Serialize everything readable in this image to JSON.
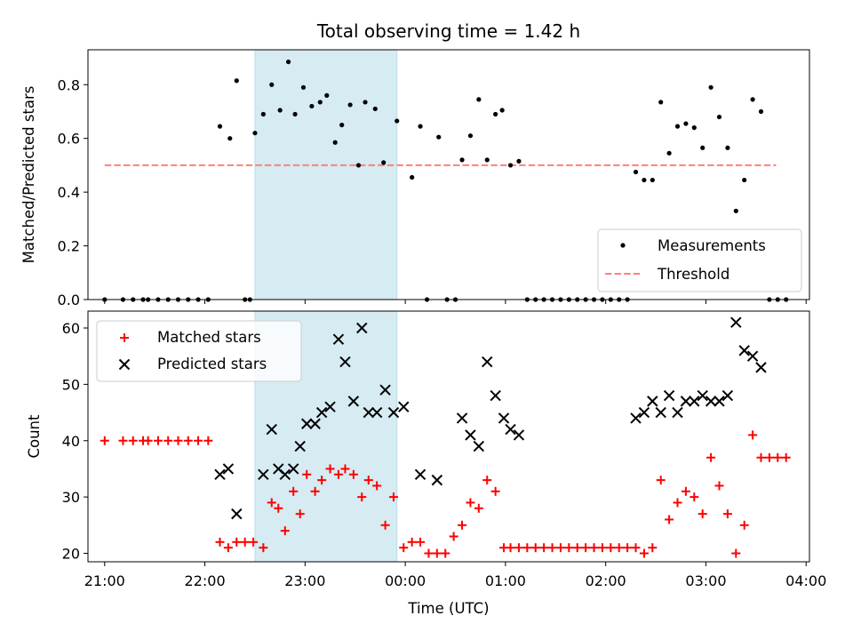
{
  "chart_data": [
    {
      "type": "scatter",
      "title": "Total observing time = 1.42 h",
      "ylabel": "Matched/Predicted stars",
      "xlabel": "",
      "ylim": [
        0,
        0.93
      ],
      "xlim": [
        "20:50",
        "04:02"
      ],
      "yticks": [
        "0.0",
        "0.2",
        "0.4",
        "0.6",
        "0.8"
      ],
      "grid": false,
      "legend_position": "bottom-right",
      "shaded_interval": [
        "22:30",
        "23:55"
      ],
      "colors": {
        "measurements": "#000000",
        "threshold": "#ff7f7f",
        "shade": "#add8e6"
      },
      "series": [
        {
          "name": "Measurements",
          "marker": "dot",
          "points": [
            [
              "21:00",
              0
            ],
            [
              "21:11",
              0
            ],
            [
              "21:17",
              0
            ],
            [
              "21:23",
              0
            ],
            [
              "21:26",
              0
            ],
            [
              "21:32",
              0
            ],
            [
              "21:38",
              0
            ],
            [
              "21:44",
              0
            ],
            [
              "21:50",
              0
            ],
            [
              "21:56",
              0
            ],
            [
              "22:02",
              0
            ],
            [
              "22:09",
              0.645
            ],
            [
              "22:15",
              0.6
            ],
            [
              "22:19",
              0.815
            ],
            [
              "22:24",
              0
            ],
            [
              "22:27",
              0
            ],
            [
              "22:30",
              0.62
            ],
            [
              "22:35",
              0.69
            ],
            [
              "22:40",
              0.8
            ],
            [
              "22:45",
              0.705
            ],
            [
              "22:50",
              0.885
            ],
            [
              "22:54",
              0.69
            ],
            [
              "22:59",
              0.79
            ],
            [
              "23:04",
              0.72
            ],
            [
              "23:09",
              0.735
            ],
            [
              "23:13",
              0.76
            ],
            [
              "23:18",
              0.585
            ],
            [
              "23:22",
              0.65
            ],
            [
              "23:27",
              0.725
            ],
            [
              "23:32",
              0.5
            ],
            [
              "23:36",
              0.735
            ],
            [
              "23:42",
              0.71
            ],
            [
              "23:47",
              0.51
            ],
            [
              "23:55",
              0.665
            ],
            [
              "00:04",
              0.455
            ],
            [
              "00:09",
              0.645
            ],
            [
              "00:13",
              0
            ],
            [
              "00:20",
              0.605
            ],
            [
              "00:25",
              0
            ],
            [
              "00:30",
              0
            ],
            [
              "00:34",
              0.52
            ],
            [
              "00:39",
              0.61
            ],
            [
              "00:44",
              0.745
            ],
            [
              "00:49",
              0.52
            ],
            [
              "00:54",
              0.69
            ],
            [
              "00:58",
              0.705
            ],
            [
              "01:03",
              0.5
            ],
            [
              "01:08",
              0.515
            ],
            [
              "01:13",
              0
            ],
            [
              "01:18",
              0
            ],
            [
              "01:23",
              0
            ],
            [
              "01:28",
              0
            ],
            [
              "01:33",
              0
            ],
            [
              "01:38",
              0
            ],
            [
              "01:43",
              0
            ],
            [
              "01:48",
              0
            ],
            [
              "01:53",
              0
            ],
            [
              "01:58",
              0
            ],
            [
              "02:03",
              0
            ],
            [
              "02:08",
              0
            ],
            [
              "02:13",
              0
            ],
            [
              "02:18",
              0.475
            ],
            [
              "02:23",
              0.445
            ],
            [
              "02:28",
              0.445
            ],
            [
              "02:33",
              0.735
            ],
            [
              "02:38",
              0.545
            ],
            [
              "02:43",
              0.645
            ],
            [
              "02:48",
              0.655
            ],
            [
              "02:53",
              0.64
            ],
            [
              "02:58",
              0.565
            ],
            [
              "03:03",
              0.79
            ],
            [
              "03:08",
              0.68
            ],
            [
              "03:13",
              0.565
            ],
            [
              "03:18",
              0.33
            ],
            [
              "03:23",
              0.445
            ],
            [
              "03:28",
              0.745
            ],
            [
              "03:33",
              0.7
            ],
            [
              "03:38",
              0
            ],
            [
              "03:43",
              0
            ],
            [
              "03:48",
              0
            ]
          ]
        },
        {
          "name": "Threshold",
          "style": "dashed",
          "points": [
            [
              "21:00",
              0.5
            ],
            [
              "03:42",
              0.5
            ]
          ]
        }
      ]
    },
    {
      "type": "scatter",
      "title": "",
      "xlabel": "Time (UTC)",
      "ylabel": "Count",
      "ylim": [
        18.5,
        63
      ],
      "xlim": [
        "20:50",
        "04:02"
      ],
      "xticks": [
        "21:00",
        "22:00",
        "23:00",
        "00:00",
        "01:00",
        "02:00",
        "03:00",
        "04:00"
      ],
      "yticks": [
        "20",
        "30",
        "40",
        "50",
        "60"
      ],
      "grid": false,
      "legend_position": "top-left",
      "shaded_interval": [
        "22:30",
        "23:55"
      ],
      "colors": {
        "matched": "#ff0000",
        "predicted": "#000000",
        "shade": "#add8e6"
      },
      "series": [
        {
          "name": "Matched stars",
          "marker": "plus",
          "points": [
            [
              "21:00",
              40
            ],
            [
              "21:11",
              40
            ],
            [
              "21:17",
              40
            ],
            [
              "21:23",
              40
            ],
            [
              "21:26",
              40
            ],
            [
              "21:32",
              40
            ],
            [
              "21:38",
              40
            ],
            [
              "21:44",
              40
            ],
            [
              "21:50",
              40
            ],
            [
              "21:56",
              40
            ],
            [
              "22:02",
              40
            ],
            [
              "22:09",
              22
            ],
            [
              "22:14",
              21
            ],
            [
              "22:19",
              22
            ],
            [
              "22:24",
              22
            ],
            [
              "22:29",
              22
            ],
            [
              "22:35",
              21
            ],
            [
              "22:40",
              29
            ],
            [
              "22:44",
              28
            ],
            [
              "22:48",
              24
            ],
            [
              "22:53",
              31
            ],
            [
              "22:57",
              27
            ],
            [
              "23:01",
              34
            ],
            [
              "23:06",
              31
            ],
            [
              "23:10",
              33
            ],
            [
              "23:15",
              35
            ],
            [
              "23:20",
              34
            ],
            [
              "23:24",
              35
            ],
            [
              "23:29",
              34
            ],
            [
              "23:34",
              30
            ],
            [
              "23:38",
              33
            ],
            [
              "23:43",
              32
            ],
            [
              "23:48",
              25
            ],
            [
              "23:53",
              30
            ],
            [
              "23:59",
              21
            ],
            [
              "00:04",
              22
            ],
            [
              "00:09",
              22
            ],
            [
              "00:14",
              20
            ],
            [
              "00:19",
              20
            ],
            [
              "00:24",
              20
            ],
            [
              "00:29",
              23
            ],
            [
              "00:34",
              25
            ],
            [
              "00:39",
              29
            ],
            [
              "00:44",
              28
            ],
            [
              "00:49",
              33
            ],
            [
              "00:54",
              31
            ],
            [
              "00:59",
              21
            ],
            [
              "01:03",
              21
            ],
            [
              "01:08",
              21
            ],
            [
              "01:13",
              21
            ],
            [
              "01:18",
              21
            ],
            [
              "01:23",
              21
            ],
            [
              "01:28",
              21
            ],
            [
              "01:33",
              21
            ],
            [
              "01:38",
              21
            ],
            [
              "01:43",
              21
            ],
            [
              "01:48",
              21
            ],
            [
              "01:53",
              21
            ],
            [
              "01:58",
              21
            ],
            [
              "02:03",
              21
            ],
            [
              "02:08",
              21
            ],
            [
              "02:13",
              21
            ],
            [
              "02:18",
              21
            ],
            [
              "02:23",
              20
            ],
            [
              "02:28",
              21
            ],
            [
              "02:33",
              33
            ],
            [
              "02:38",
              26
            ],
            [
              "02:43",
              29
            ],
            [
              "02:48",
              31
            ],
            [
              "02:53",
              30
            ],
            [
              "02:58",
              27
            ],
            [
              "03:03",
              37
            ],
            [
              "03:08",
              32
            ],
            [
              "03:13",
              27
            ],
            [
              "03:18",
              20
            ],
            [
              "03:23",
              25
            ],
            [
              "03:28",
              41
            ],
            [
              "03:33",
              37
            ],
            [
              "03:38",
              37
            ],
            [
              "03:43",
              37
            ],
            [
              "03:48",
              37
            ]
          ]
        },
        {
          "name": "Predicted stars",
          "marker": "x",
          "points": [
            [
              "22:09",
              34
            ],
            [
              "22:14",
              35
            ],
            [
              "22:19",
              27
            ],
            [
              "22:35",
              34
            ],
            [
              "22:40",
              42
            ],
            [
              "22:44",
              35
            ],
            [
              "22:48",
              34
            ],
            [
              "22:53",
              35
            ],
            [
              "22:57",
              39
            ],
            [
              "23:01",
              43
            ],
            [
              "23:06",
              43
            ],
            [
              "23:10",
              45
            ],
            [
              "23:15",
              46
            ],
            [
              "23:20",
              58
            ],
            [
              "23:24",
              54
            ],
            [
              "23:29",
              47
            ],
            [
              "23:34",
              60
            ],
            [
              "23:38",
              45
            ],
            [
              "23:43",
              45
            ],
            [
              "23:48",
              49
            ],
            [
              "23:53",
              45
            ],
            [
              "23:59",
              46
            ],
            [
              "00:09",
              34
            ],
            [
              "00:19",
              33
            ],
            [
              "00:34",
              44
            ],
            [
              "00:39",
              41
            ],
            [
              "00:44",
              39
            ],
            [
              "00:49",
              54
            ],
            [
              "00:54",
              48
            ],
            [
              "00:59",
              44
            ],
            [
              "01:03",
              42
            ],
            [
              "01:08",
              41
            ],
            [
              "02:18",
              44
            ],
            [
              "02:23",
              45
            ],
            [
              "02:28",
              47
            ],
            [
              "02:33",
              45
            ],
            [
              "02:38",
              48
            ],
            [
              "02:43",
              45
            ],
            [
              "02:48",
              47
            ],
            [
              "02:53",
              47
            ],
            [
              "02:58",
              48
            ],
            [
              "03:03",
              47
            ],
            [
              "03:08",
              47
            ],
            [
              "03:13",
              48
            ],
            [
              "03:18",
              61
            ],
            [
              "03:23",
              56
            ],
            [
              "03:28",
              55
            ],
            [
              "03:33",
              53
            ]
          ]
        }
      ]
    }
  ]
}
